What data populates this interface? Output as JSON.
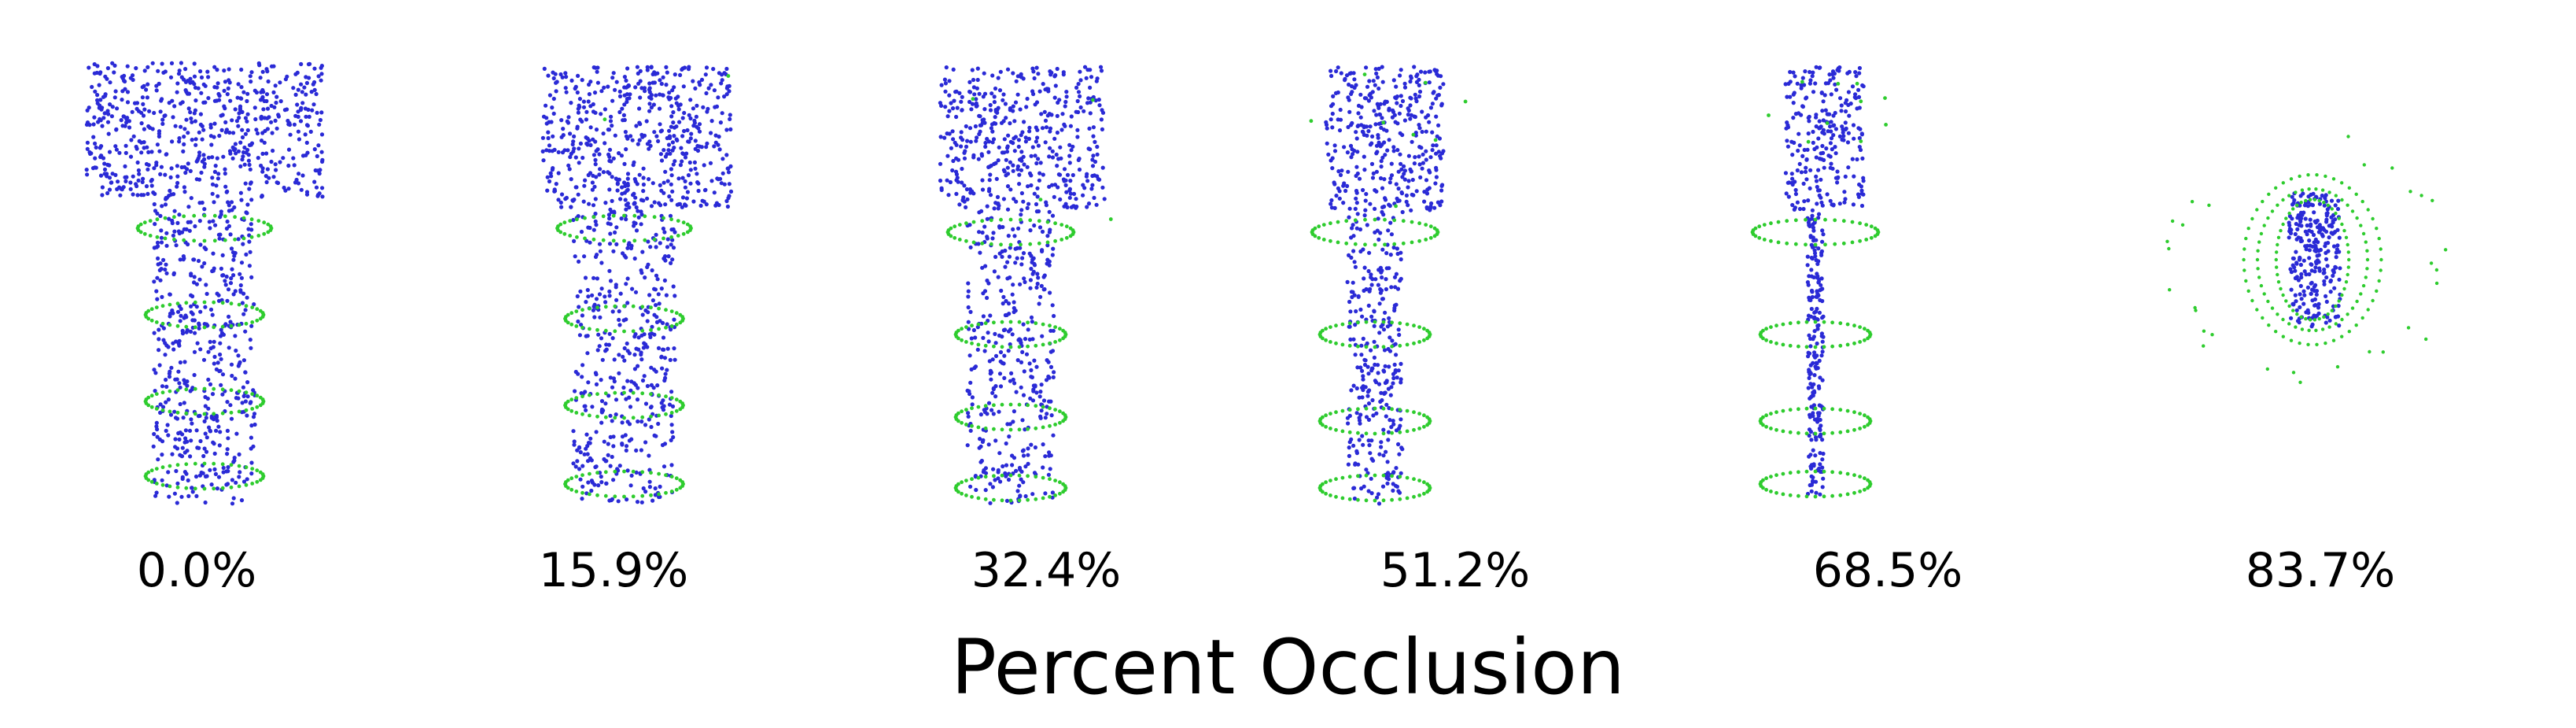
{
  "figure": {
    "axis_title": "Percent Occlusion",
    "colors": {
      "object_points": "#2a2ad6",
      "ring_points": "#2ecc2e",
      "background": "#ffffff"
    },
    "panels": [
      {
        "label": "0.0%",
        "occlusion": 0.0
      },
      {
        "label": "15.9%",
        "occlusion": 0.159
      },
      {
        "label": "32.4%",
        "occlusion": 0.324
      },
      {
        "label": "51.2%",
        "occlusion": 0.512
      },
      {
        "label": "68.5%",
        "occlusion": 0.685
      },
      {
        "label": "83.7%",
        "occlusion": 0.837
      }
    ]
  }
}
